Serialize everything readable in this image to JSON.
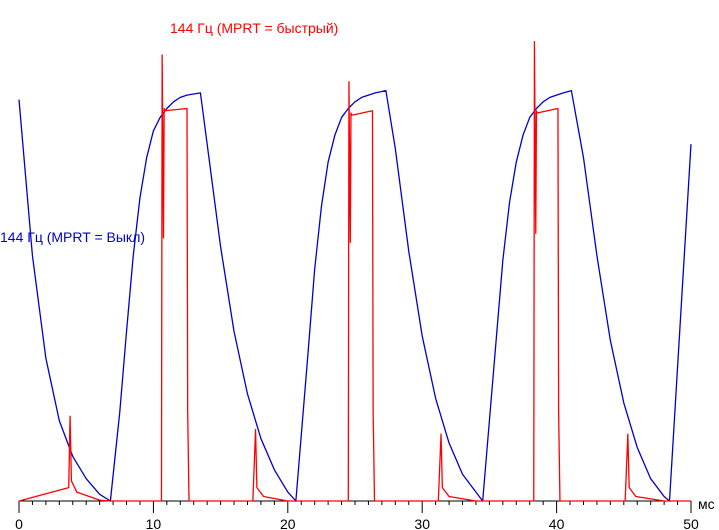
{
  "chart_data": {
    "type": "line",
    "title": "",
    "xlabel": "мс",
    "ylabel": "",
    "xlim": [
      0,
      50
    ],
    "ylim": [
      0,
      1
    ],
    "x_ticks": [
      "0",
      "10",
      "20",
      "30",
      "40",
      "50"
    ],
    "grid": false,
    "legend": "labels placed beside curves",
    "series": [
      {
        "name": "144 Гц (MPRT = быстрый)",
        "color": "#ff0000",
        "x": [
          0,
          3.7,
          3.8,
          3.9,
          4.3,
          6.0,
          6.8,
          10.6,
          10.65,
          10.75,
          10.8,
          10.85,
          12.5,
          12.55,
          12.65,
          17.4,
          17.6,
          17.7,
          18.2,
          20.0,
          20.8,
          24.5,
          24.55,
          24.65,
          24.7,
          24.75,
          26.3,
          26.35,
          26.45,
          31.2,
          31.4,
          31.5,
          32.0,
          34.0,
          34.6,
          38.3,
          38.35,
          38.45,
          38.5,
          38.55,
          40.1,
          40.15,
          40.25,
          45.1,
          45.3,
          45.4,
          45.9,
          48.0,
          50.0
        ],
        "y": [
          0,
          0.03,
          0.19,
          0.045,
          0.02,
          0.002,
          0,
          0,
          1.0,
          0.59,
          0.88,
          0.875,
          0.88,
          0.2,
          0,
          0,
          0.16,
          0.03,
          0.01,
          0,
          0,
          0,
          0.94,
          0.58,
          0.87,
          0.865,
          0.875,
          0.2,
          0,
          0,
          0.15,
          0.03,
          0.01,
          0,
          0,
          0,
          1.03,
          0.6,
          0.875,
          0.87,
          0.88,
          0.2,
          0,
          0,
          0.15,
          0.03,
          0.01,
          0,
          0
        ]
      },
      {
        "name": "144 Гц (MPRT = Выкл)",
        "color": "#0000cc",
        "x": [
          0,
          1,
          2,
          3,
          4,
          5,
          6,
          6.8,
          7.5,
          8,
          8.5,
          9,
          9.5,
          10,
          10.5,
          11,
          11.5,
          12,
          12.5,
          13.5,
          14,
          15,
          16,
          17,
          18,
          19,
          20,
          20.6,
          21.5,
          22,
          22.5,
          23,
          23.5,
          24,
          24.5,
          25,
          25.5,
          26,
          26.5,
          27.3,
          28,
          29,
          30,
          31,
          32,
          33,
          34,
          34.5,
          35.5,
          36,
          36.5,
          37,
          37.5,
          38,
          38.5,
          39,
          39.5,
          40,
          40.5,
          41.1,
          42,
          43,
          44,
          45,
          46,
          47,
          48,
          48.4,
          49,
          49.5,
          50
        ],
        "y": [
          0.9,
          0.55,
          0.32,
          0.18,
          0.1,
          0.05,
          0.015,
          0,
          0.2,
          0.38,
          0.55,
          0.68,
          0.77,
          0.83,
          0.86,
          0.88,
          0.895,
          0.905,
          0.91,
          0.915,
          0.8,
          0.57,
          0.38,
          0.24,
          0.14,
          0.07,
          0.02,
          0,
          0.33,
          0.52,
          0.66,
          0.76,
          0.82,
          0.86,
          0.88,
          0.895,
          0.905,
          0.91,
          0.915,
          0.92,
          0.79,
          0.56,
          0.37,
          0.23,
          0.13,
          0.06,
          0.02,
          0,
          0.36,
          0.54,
          0.67,
          0.76,
          0.82,
          0.86,
          0.88,
          0.895,
          0.905,
          0.91,
          0.915,
          0.92,
          0.77,
          0.55,
          0.36,
          0.22,
          0.12,
          0.05,
          0.01,
          0,
          0.3,
          0.55,
          0.8
        ]
      }
    ]
  }
}
